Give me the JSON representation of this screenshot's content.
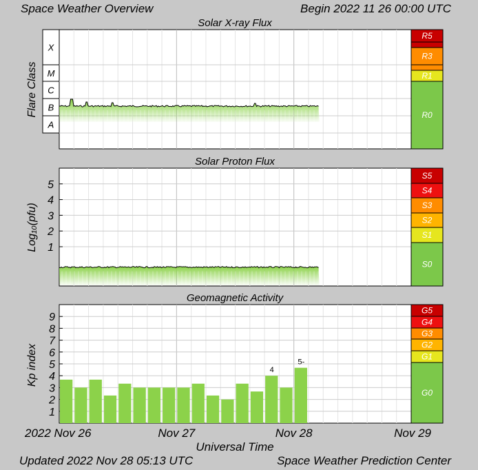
{
  "header": {
    "title": "Space Weather Overview",
    "begin": "Begin 2022 11 26 00:00 UTC"
  },
  "footer": {
    "updated": "Updated 2022 Nov 28 05:13 UTC",
    "center": "Space Weather Prediction Center"
  },
  "colors": {
    "background": "#c8c8c8",
    "data_fill": "#8cd24a",
    "scale_green": "#7cc84a",
    "scale_yellow": "#e6e61e",
    "scale_orange": "#ff8c00",
    "scale_red": "#ee1010",
    "scale_darkred": "#c80000"
  },
  "chart_data": [
    {
      "type": "area",
      "title": "Solar X-ray Flux",
      "ylabel": "Flare Class",
      "y_categories": [
        "A",
        "B",
        "C",
        "M",
        "X"
      ],
      "x_ticks": [
        "2022 Nov 26",
        "Nov 27",
        "Nov 28",
        "Nov 29"
      ],
      "xlabel": "Universal Time",
      "x_range_hours": [
        0,
        72
      ],
      "data_end_hours": 53.2,
      "series_level": "B",
      "scale_levels": [
        {
          "label": "R5",
          "color": "#c80000"
        },
        {
          "label": "R3",
          "color": "#ff8c00"
        },
        {
          "label": "R1",
          "color": "#e6e61e"
        },
        {
          "label": "R0",
          "color": "#7cc84a"
        }
      ],
      "grid": true
    },
    {
      "type": "area",
      "title": "Solar Proton Flux",
      "ylabel": "Log₁₀(pfu)",
      "y_ticks": [
        1,
        2,
        3,
        4,
        5
      ],
      "ylim": [
        -1.5,
        6
      ],
      "x_range_hours": [
        0,
        72
      ],
      "data_end_hours": 53.2,
      "series_level": -0.3,
      "scale_levels": [
        {
          "label": "S5",
          "color": "#c80000"
        },
        {
          "label": "S4",
          "color": "#ee1010"
        },
        {
          "label": "S3",
          "color": "#ff8c00"
        },
        {
          "label": "S2",
          "color": "#ffb400"
        },
        {
          "label": "S1",
          "color": "#e6e61e"
        },
        {
          "label": "S0",
          "color": "#7cc84a"
        }
      ],
      "grid": true
    },
    {
      "type": "bar",
      "title": "Geomagnetic Activity",
      "ylabel": "Kp index",
      "y_ticks": [
        1,
        2,
        3,
        4,
        5,
        6,
        7,
        8,
        9
      ],
      "ylim": [
        0,
        10
      ],
      "x_range_hours": [
        0,
        72
      ],
      "bar_interval_hours": 3,
      "values": [
        3.67,
        3.0,
        3.67,
        2.33,
        3.33,
        3.0,
        3.0,
        3.0,
        3.0,
        3.33,
        2.33,
        2.0,
        3.33,
        2.67,
        4.0,
        3.0,
        4.67
      ],
      "data_labels": [
        {
          "index": 14,
          "text": "4"
        },
        {
          "index": 16,
          "text": "5-"
        }
      ],
      "scale_levels": [
        {
          "label": "G5",
          "color": "#c80000"
        },
        {
          "label": "G4",
          "color": "#ee1010"
        },
        {
          "label": "G3",
          "color": "#ff8c00"
        },
        {
          "label": "G2",
          "color": "#ffb400"
        },
        {
          "label": "G1",
          "color": "#e6e61e"
        },
        {
          "label": "G0",
          "color": "#7cc84a"
        }
      ],
      "grid": true
    }
  ]
}
